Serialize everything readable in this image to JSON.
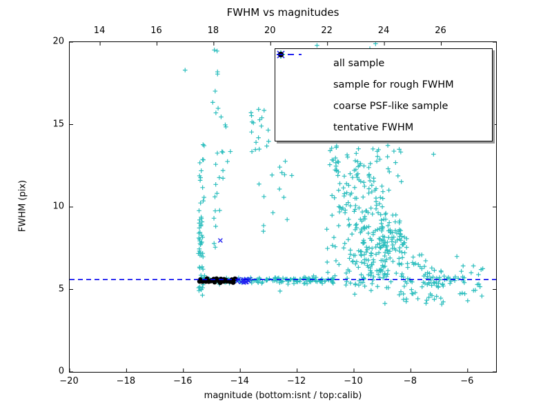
{
  "title": "FWHM vs magnitudes",
  "axes": {
    "xlabel": "magnitude (bottom:isnt / top:calib)",
    "ylabel": "FWHM (pix)"
  },
  "legend": {
    "items": [
      {
        "label": "all sample",
        "marker": "plus",
        "color": "#29bdbd"
      },
      {
        "label": "sample for rough FWHM",
        "marker": "x",
        "color": "#2525f0"
      },
      {
        "label": "coarse PSF-like sample",
        "marker": "dot",
        "color": "#000000"
      },
      {
        "label": "tentative FWHM",
        "marker": "dash",
        "color": "#0000ee"
      }
    ]
  },
  "chart_data": {
    "type": "scatter",
    "title": "FWHM vs magnitudes",
    "xlabel": "magnitude (bottom:isnt / top:calib)",
    "ylabel": "FWHM (pix)",
    "xlim": [
      -20,
      -5
    ],
    "ylim": [
      0,
      20
    ],
    "x_ticks_bottom": [
      -20,
      -18,
      -16,
      -14,
      -12,
      -10,
      -8,
      -6
    ],
    "x_ticks_top_calib": [
      14,
      16,
      18,
      20,
      22,
      24,
      26
    ],
    "calib_offset": 32.93,
    "y_ticks": [
      0,
      5,
      10,
      15,
      20
    ],
    "tentative_fwhm": 5.6,
    "grid": false,
    "legend_position": "upper right",
    "seed": 42,
    "series": [
      {
        "name": "all sample",
        "marker": "plus",
        "color": "#29bdbd",
        "clusters": [
          {
            "dist": "uniform",
            "n": 42,
            "x": [
              -15.47,
              -15.3
            ],
            "y": [
              4.85,
              9.8
            ]
          },
          {
            "dist": "uniform",
            "n": 13,
            "x": [
              -15.45,
              -15.27
            ],
            "y": [
              9.8,
              14.2
            ]
          },
          {
            "dist": "uniform",
            "n": 20,
            "x": [
              -14.97,
              -14.7
            ],
            "y": [
              7.2,
              19.6
            ]
          },
          {
            "dist": "uniform",
            "n": 9,
            "x": [
              -14.75,
              -14.3
            ],
            "y": [
              11.5,
              17.2
            ]
          },
          {
            "dist": "gauss",
            "n": 13,
            "cx": -13.5,
            "cy": 14.8,
            "sx": 0.2,
            "sy": 1.0
          },
          {
            "dist": "uniform",
            "n": 24,
            "x": [
              -13.45,
              -11.5
            ],
            "y": [
              8.5,
              16.3
            ]
          },
          {
            "dist": "uniform",
            "n": 40,
            "x": [
              -10.97,
              -10.33
            ],
            "y": [
              5.2,
              13.9
            ]
          },
          {
            "dist": "uniform",
            "n": 75,
            "x": [
              -10.35,
              -9.55
            ],
            "y": [
              5.0,
              13.2
            ]
          },
          {
            "dist": "gauss",
            "n": 185,
            "cx": -9.05,
            "cy": 7.5,
            "sx": 0.42,
            "sy": 1.55
          },
          {
            "dist": "gauss",
            "n": 42,
            "cx": -9.35,
            "cy": 12.2,
            "sx": 0.45,
            "sy": 1.25
          },
          {
            "dist": "uniform",
            "n": 9,
            "x": [
              -9.9,
              -8.3
            ],
            "y": [
              14.6,
              16.8
            ]
          },
          {
            "dist": "wedge",
            "n": 75,
            "x": [
              -8.55,
              -6.85
            ],
            "ylo": 4.0,
            "yhi0": 9.0,
            "yhi1": 5.6
          },
          {
            "dist": "band",
            "n": 50,
            "x": [
              -15.35,
              -13.4
            ],
            "mean": 5.55,
            "sigma": 0.1
          },
          {
            "dist": "band",
            "n": 90,
            "x": [
              -13.4,
              -10.7
            ],
            "mean": 5.55,
            "sigma": 0.1
          },
          {
            "dist": "band",
            "n": 28,
            "x": [
              -7.6,
              -6.0
            ],
            "mean": 5.55,
            "sigma": 0.13
          },
          {
            "dist": "uniform",
            "n": 20,
            "x": [
              -7.3,
              -5.4
            ],
            "y": [
              4.3,
              6.5
            ]
          }
        ],
        "points": [
          [
            -15.94,
            18.3
          ],
          [
            -11.3,
            19.8
          ],
          [
            -9.44,
            19.6
          ],
          [
            -9.24,
            19.9
          ],
          [
            -8.56,
            16.7
          ],
          [
            -8.3,
            15.5
          ],
          [
            -7.6,
            14.0
          ],
          [
            -7.2,
            13.2
          ],
          [
            -6.55,
            14.4
          ],
          [
            -6.38,
            7.0
          ],
          [
            -5.62,
            5.9
          ],
          [
            -5.5,
            4.6
          ],
          [
            -12.6,
            4.9
          ],
          [
            -15.33,
            4.65
          ]
        ]
      },
      {
        "name": "sample for rough FWHM",
        "marker": "x",
        "color": "#2525f0",
        "clusters": [
          {
            "dist": "band",
            "n": 20,
            "x": [
              -14.32,
              -13.66
            ],
            "mean": 5.55,
            "sigma": 0.07
          }
        ],
        "points": [
          [
            -14.7,
            7.97
          ]
        ]
      },
      {
        "name": "coarse PSF-like sample",
        "marker": "dot",
        "color": "#000000",
        "clusters": [
          {
            "dist": "band",
            "n": 30,
            "x": [
              -15.44,
              -14.18
            ],
            "mean": 5.52,
            "sigma": 0.06
          }
        ],
        "points": []
      },
      {
        "name": "tentative FWHM",
        "marker": "dash",
        "color": "#0000ee",
        "line_y": 5.6
      }
    ]
  }
}
